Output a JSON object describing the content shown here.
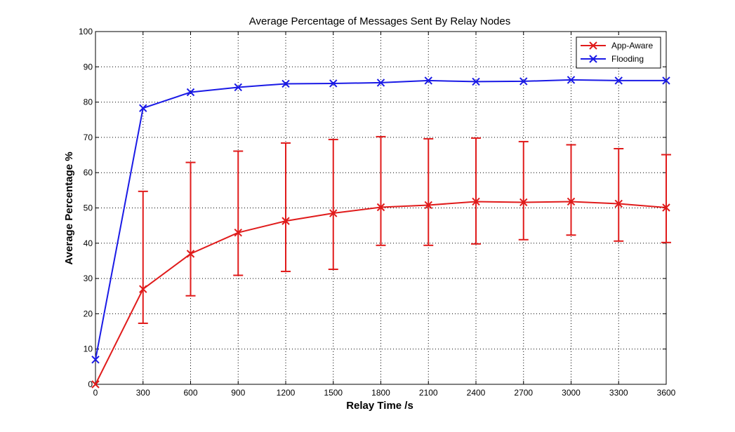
{
  "chart_data": {
    "type": "line",
    "title": "Average Percentage of Messages Sent By Relay Nodes",
    "xlabel": "Relay Time /s",
    "ylabel": "Average Percentage %",
    "xlim": [
      0,
      3600
    ],
    "ylim": [
      0,
      100
    ],
    "x_ticks": [
      "0",
      "300",
      "600",
      "900",
      "1200",
      "1500",
      "1800",
      "2100",
      "2400",
      "2700",
      "3000",
      "3300",
      "3600"
    ],
    "y_ticks": [
      "0",
      "10",
      "20",
      "30",
      "40",
      "50",
      "60",
      "70",
      "80",
      "90",
      "100"
    ],
    "grid": true,
    "legend_position": "top-right",
    "x": [
      0,
      300,
      600,
      900,
      1200,
      1500,
      1800,
      2100,
      2400,
      2700,
      3000,
      3300,
      3600
    ],
    "series": [
      {
        "name": "App-Aware",
        "color": "#e01b1b",
        "marker": "x",
        "values": [
          0,
          27,
          37,
          43,
          46.3,
          48.5,
          50.2,
          50.8,
          51.8,
          51.6,
          51.8,
          51.2,
          50.1
        ],
        "error_low": [
          null,
          17.3,
          25.1,
          30.9,
          32.0,
          32.6,
          39.4,
          39.4,
          39.8,
          41.0,
          42.3,
          40.6,
          40.2
        ],
        "error_high": [
          null,
          54.7,
          62.9,
          66.1,
          68.4,
          69.4,
          70.2,
          69.6,
          69.8,
          68.8,
          67.9,
          66.8,
          65.1
        ]
      },
      {
        "name": "Flooding",
        "color": "#1a1ae6",
        "marker": "x",
        "values": [
          7,
          78.3,
          82.8,
          84.2,
          85.2,
          85.3,
          85.5,
          86.1,
          85.8,
          85.9,
          86.3,
          86.1,
          86.1
        ]
      }
    ]
  }
}
